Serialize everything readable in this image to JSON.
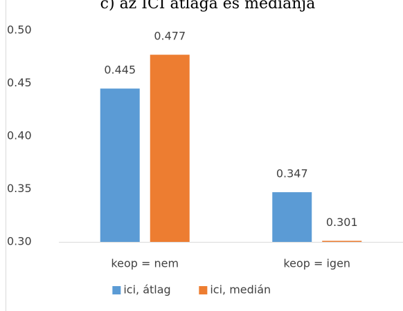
{
  "chart_data": {
    "type": "bar",
    "title": "c) az ICI átlaga és mediánja",
    "categories": [
      "keop = nem",
      "keop = igen"
    ],
    "series": [
      {
        "name": "ici, átlag",
        "color": "#5b9bd5",
        "values": [
          0.445,
          0.347
        ]
      },
      {
        "name": "ici, medián",
        "color": "#ed7d31",
        "values": [
          0.477,
          0.301
        ]
      }
    ],
    "ylim": [
      0.3,
      0.5
    ],
    "yticks": [
      {
        "value": 0.3,
        "label": "0.30"
      },
      0.35,
      {
        "value": 0.4,
        "label": "0.40"
      },
      0.45,
      {
        "value": 0.5,
        "label": "0.50"
      }
    ],
    "grid": false,
    "legend": "bottom"
  }
}
